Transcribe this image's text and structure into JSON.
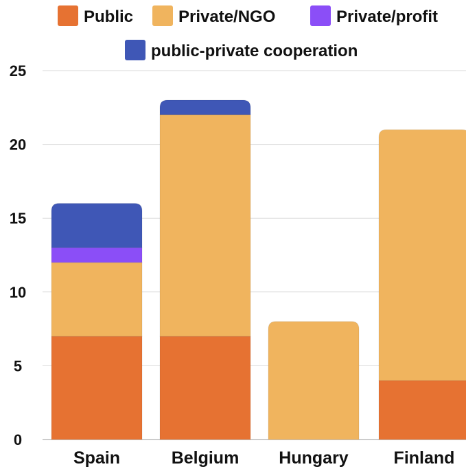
{
  "chart_data": {
    "type": "bar",
    "stacked": true,
    "categories": [
      "Spain",
      "Belgium",
      "Hungary",
      "Finland"
    ],
    "series": [
      {
        "name": "Public",
        "color": "#E67232",
        "values": [
          7,
          7,
          0,
          4
        ]
      },
      {
        "name": "Private/NGO",
        "color": "#F0B45E",
        "values": [
          5,
          15,
          8,
          17
        ]
      },
      {
        "name": "Private/profit",
        "color": "#8B4EF7",
        "values": [
          1,
          0,
          0,
          0
        ]
      },
      {
        "name": "public-private cooperation",
        "color": "#3F57B6",
        "values": [
          3,
          1,
          0,
          0
        ]
      }
    ],
    "ylim": [
      0,
      25
    ],
    "yticks": [
      0,
      5,
      10,
      15,
      20,
      25
    ],
    "grid": true,
    "legend_position": "top",
    "title": "",
    "xlabel": "",
    "ylabel": ""
  }
}
